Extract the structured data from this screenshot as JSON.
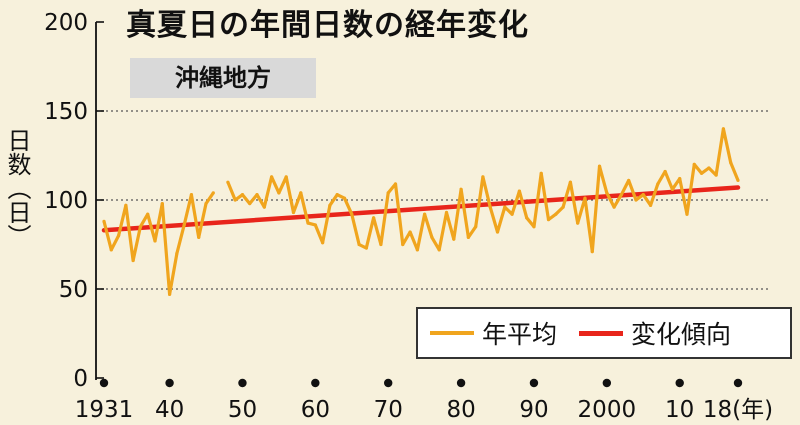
{
  "title": "真夏日の年間日数の経年変化",
  "region_label": "沖縄地方",
  "y_axis_label": "日数（日）",
  "legend": {
    "series_label": "年平均",
    "trend_label": "変化傾向"
  },
  "colors": {
    "series": "#f0a51e",
    "trend": "#e8251b",
    "grid": "#555555",
    "axis": "#111111"
  },
  "chart_data": {
    "type": "line",
    "ylim": [
      0,
      200
    ],
    "xlim": [
      1931,
      2018
    ],
    "y_ticks": [
      0,
      50,
      100,
      150,
      200
    ],
    "y_tick_labels": [
      "0",
      "50",
      "100",
      "150",
      "200"
    ],
    "x_ticks": [
      1931,
      1940,
      1950,
      1960,
      1970,
      1980,
      1990,
      2000,
      2010,
      2018
    ],
    "x_tick_labels": [
      "1931",
      "40",
      "50",
      "60",
      "70",
      "80",
      "90",
      "2000",
      "10",
      "18(年)"
    ],
    "gridlines_y": [
      50,
      100,
      150
    ],
    "series": [
      {
        "name": "年平均",
        "segments": [
          {
            "x": [
              1931,
              1932,
              1933,
              1934,
              1935,
              1936,
              1937,
              1938,
              1939,
              1940,
              1941,
              1942,
              1943,
              1944,
              1945,
              1946
            ],
            "y": [
              88,
              72,
              80,
              97,
              66,
              85,
              92,
              77,
              98,
              47,
              70,
              86,
              103,
              79,
              98,
              104
            ]
          },
          {
            "x": [
              1948,
              1949,
              1950,
              1951,
              1952,
              1953,
              1954,
              1955,
              1956,
              1957,
              1958,
              1959,
              1960,
              1961,
              1962,
              1963,
              1964,
              1965,
              1966,
              1967,
              1968,
              1969,
              1970,
              1971,
              1972,
              1973,
              1974,
              1975,
              1976,
              1977,
              1978,
              1979,
              1980,
              1981,
              1982,
              1983,
              1984,
              1985,
              1986,
              1987,
              1988,
              1989,
              1990,
              1991,
              1992,
              1993,
              1994,
              1995,
              1996,
              1997,
              1998,
              1999,
              2000,
              2001,
              2002,
              2003,
              2004,
              2005,
              2006,
              2007,
              2008,
              2009,
              2010,
              2011,
              2012,
              2013,
              2014,
              2015,
              2016,
              2017,
              2018
            ],
            "y": [
              110,
              100,
              103,
              98,
              103,
              96,
              113,
              104,
              113,
              93,
              104,
              87,
              86,
              76,
              97,
              103,
              101,
              92,
              75,
              73,
              90,
              75,
              104,
              109,
              75,
              82,
              72,
              92,
              79,
              72,
              93,
              78,
              106,
              79,
              85,
              113,
              96,
              82,
              96,
              92,
              105,
              90,
              85,
              115,
              89,
              92,
              96,
              110,
              87,
              101,
              71,
              119,
              104,
              96,
              103,
              111,
              100,
              103,
              97,
              109,
              116,
              106,
              112,
              92,
              120,
              115,
              118,
              114,
              140,
              121,
              111
            ]
          }
        ]
      },
      {
        "name": "変化傾向",
        "x": [
          1931,
          2018
        ],
        "y": [
          83,
          107
        ]
      }
    ]
  }
}
